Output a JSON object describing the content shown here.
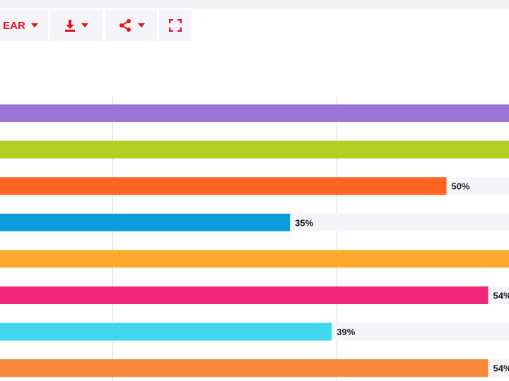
{
  "toolbar": {
    "year_label": "EAR",
    "download_icon": "download-icon",
    "share_icon": "share-icon",
    "fullscreen_icon": "fullscreen-icon"
  },
  "colors": {
    "accent": "#e0141e",
    "track": "#f5f4f8",
    "grid": "#d9d9de"
  },
  "chart_data": {
    "type": "bar",
    "orientation": "horizontal",
    "xlim": [
      0,
      64
    ],
    "grid": true,
    "bars": [
      {
        "value": null,
        "label": "",
        "color": "#9b76d6"
      },
      {
        "value": null,
        "label": "",
        "color": "#b3cd22"
      },
      {
        "value": 50,
        "label": "50%",
        "color": "#ff6422"
      },
      {
        "value": 35,
        "label": "35%",
        "color": "#0a9ddd"
      },
      {
        "value": null,
        "label": "",
        "color": "#fcab30"
      },
      {
        "value": 54,
        "label": "54%",
        "color": "#f0287c"
      },
      {
        "value": 39,
        "label": "39%",
        "color": "#40d8ec"
      },
      {
        "value": 54,
        "label": "54%",
        "color": "#f8883a"
      }
    ]
  }
}
